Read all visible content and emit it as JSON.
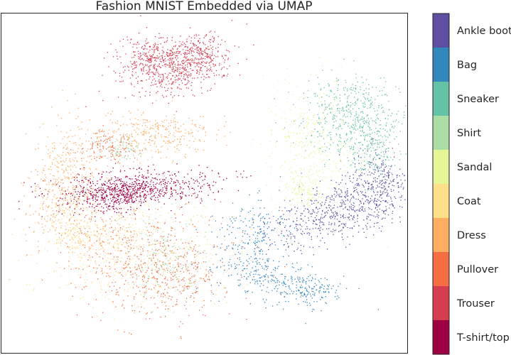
{
  "chart_data": {
    "type": "scatter",
    "title": "Fashion MNIST Embedded via UMAP",
    "xlabel": "",
    "ylabel": "",
    "grid": false,
    "axis_ticks": false,
    "legend": "colorbar-right",
    "classes": [
      {
        "label": "T-shirt/top",
        "color": "#9e0142"
      },
      {
        "label": "Trouser",
        "color": "#d53e4f"
      },
      {
        "label": "Pullover",
        "color": "#f46d43"
      },
      {
        "label": "Dress",
        "color": "#fdae61"
      },
      {
        "label": "Coat",
        "color": "#fee08b"
      },
      {
        "label": "Sandal",
        "color": "#e6f598"
      },
      {
        "label": "Shirt",
        "color": "#abdda4"
      },
      {
        "label": "Sneaker",
        "color": "#66c2a5"
      },
      {
        "label": "Bag",
        "color": "#3288bd"
      },
      {
        "label": "Ankle boot",
        "color": "#5e4fa2"
      }
    ]
  }
}
